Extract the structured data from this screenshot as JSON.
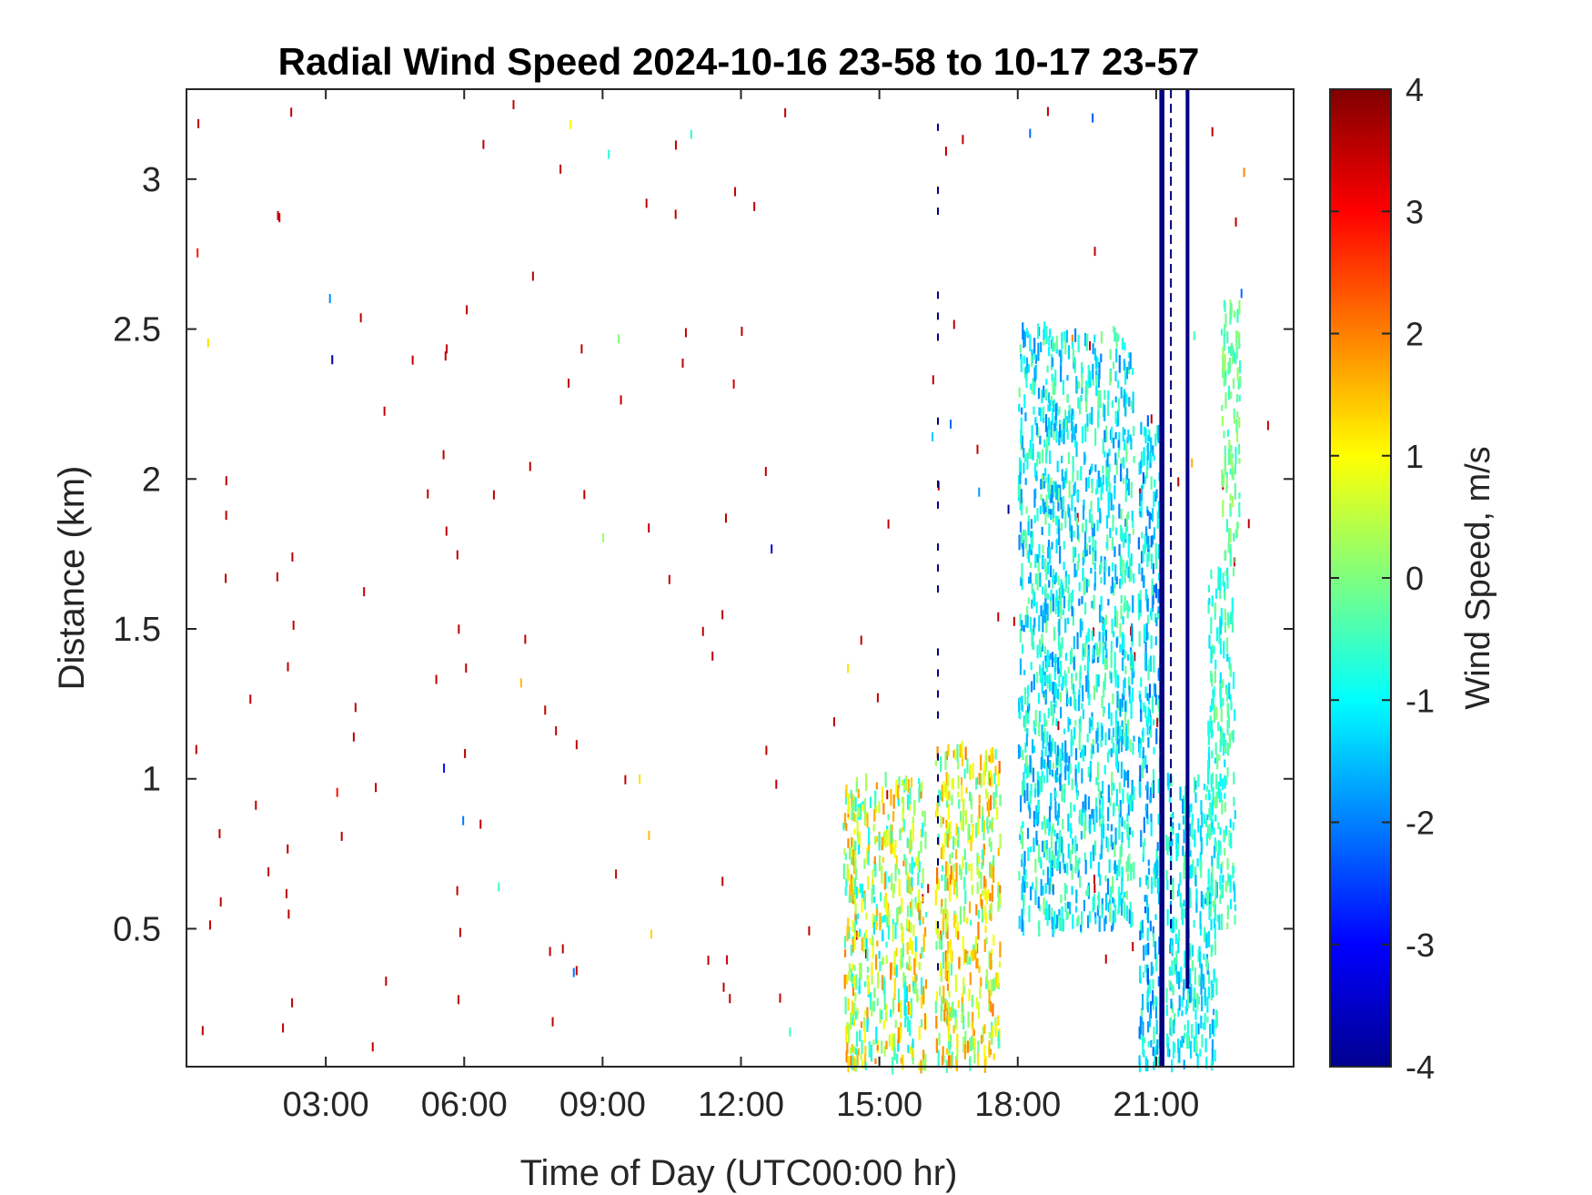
{
  "chart_data": {
    "type": "heatmap",
    "title": "Radial Wind Speed 2024-10-16 23-58 to 10-17 23-57",
    "xlabel": "Time of Day (UTC00:00 hr)",
    "ylabel": "Distance (km)",
    "colorbar_label": "Wind Speed, m/s",
    "xlim": [
      -0.02,
      23.98
    ],
    "ylim": [
      0.04,
      3.3
    ],
    "clim": [
      -4,
      4
    ],
    "colormap": "jet",
    "x_ticks": [
      3,
      6,
      9,
      12,
      15,
      18,
      21
    ],
    "x_tick_labels": [
      "03:00",
      "06:00",
      "09:00",
      "12:00",
      "15:00",
      "18:00",
      "21:00"
    ],
    "y_ticks": [
      0.5,
      1,
      1.5,
      2,
      2.5,
      3
    ],
    "y_tick_labels": [
      "0.5",
      "1",
      "1.5",
      "2",
      "2.5",
      "3"
    ],
    "colorbar_ticks": [
      4,
      3,
      2,
      1,
      0,
      -1,
      -2,
      -3,
      -4
    ],
    "colorbar_tick_labels": [
      "4",
      "3",
      "2",
      "1",
      "0",
      "-1",
      "-2",
      "-3",
      "-4"
    ],
    "grid": false,
    "regions": [
      {
        "x": [
          14.2,
          16.0
        ],
        "y": [
          0.04,
          1.0
        ],
        "mean_speed": 0.4,
        "spread": 1.6
      },
      {
        "x": [
          16.2,
          17.6
        ],
        "y": [
          0.04,
          1.1
        ],
        "mean_speed": 0.8,
        "spread": 1.4
      },
      {
        "x": [
          18.0,
          20.5
        ],
        "y": [
          0.5,
          2.5
        ],
        "mean_speed": -1.0,
        "spread": 1.0
      },
      {
        "x": [
          20.6,
          21.1
        ],
        "y": [
          0.04,
          2.2
        ],
        "mean_speed": -1.3,
        "spread": 1.0
      },
      {
        "x": [
          21.2,
          22.3
        ],
        "y": [
          0.04,
          1.0
        ],
        "mean_speed": -1.0,
        "spread": 0.8
      },
      {
        "x": [
          22.1,
          22.7
        ],
        "y": [
          0.5,
          1.7
        ],
        "mean_speed": -0.6,
        "spread": 0.7
      },
      {
        "x": [
          22.4,
          22.8
        ],
        "y": [
          1.7,
          2.6
        ],
        "mean_speed": -0.2,
        "spread": 0.5
      }
    ],
    "bands": [
      {
        "x": [
          21.07,
          21.18
        ],
        "y": [
          0.04,
          3.3
        ],
        "speed": -4
      },
      {
        "x": [
          21.64,
          21.72
        ],
        "y": [
          0.3,
          3.3
        ],
        "speed": -4
      }
    ],
    "dashed_column": {
      "x": 21.32,
      "y": [
        0.5,
        3.3
      ]
    },
    "vertical_streak": {
      "x": 16.25,
      "y": [
        0.04,
        3.3
      ],
      "speed": -4
    }
  }
}
